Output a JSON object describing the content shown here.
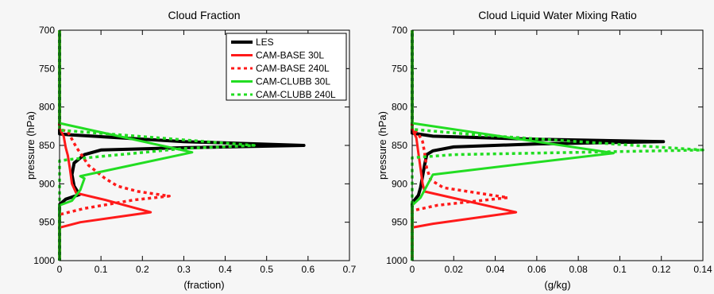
{
  "colors": {
    "LES": "#000000",
    "CAM-BASE 30L": "#ff1a1a",
    "CAM-BASE 240L": "#ff1a1a",
    "CAM-CLUBB 30L": "#22dd22",
    "CAM-CLUBB 240L": "#22dd22"
  },
  "chart_data": [
    {
      "type": "line",
      "title": "Cloud Fraction",
      "xlabel": "(fraction)",
      "ylabel": "pressure (hPa)",
      "xlim": [
        0,
        0.7
      ],
      "ylim": [
        1000,
        700
      ],
      "y_inverted": true,
      "grid": false,
      "legend_position": "top-right",
      "xticks": [
        0,
        0.1,
        0.2,
        0.3,
        0.4,
        0.5,
        0.6,
        0.7
      ],
      "xtick_labels": [
        "0",
        "0.1",
        "0.2",
        "0.3",
        "0.4",
        "0.5",
        "0.6",
        "0.7"
      ],
      "yticks": [
        700,
        750,
        800,
        850,
        900,
        950,
        1000
      ],
      "ytick_labels": [
        "700",
        "750",
        "800",
        "850",
        "900",
        "950",
        "1000"
      ],
      "series": [
        {
          "name": "LES",
          "style": "solid",
          "points": [
            [
              0,
              700
            ],
            [
              0,
              835
            ],
            [
              0.02,
              836
            ],
            [
              0.3,
              845
            ],
            [
              0.59,
              850
            ],
            [
              0.3,
              853
            ],
            [
              0.1,
              856
            ],
            [
              0.06,
              862
            ],
            [
              0.035,
              873
            ],
            [
              0.03,
              888
            ],
            [
              0.035,
              903
            ],
            [
              0.048,
              914
            ],
            [
              0.015,
              920
            ],
            [
              0,
              927
            ],
            [
              0,
              1000
            ]
          ]
        },
        {
          "name": "CAM-BASE 30L",
          "style": "solid",
          "points": [
            [
              0,
              700
            ],
            [
              0,
              828
            ],
            [
              0.01,
              838
            ],
            [
              0.015,
              853
            ],
            [
              0.02,
              863
            ],
            [
              0.025,
              880
            ],
            [
              0.03,
              900
            ],
            [
              0.04,
              912
            ],
            [
              0.11,
              921
            ],
            [
              0.22,
              937
            ],
            [
              0.05,
              950
            ],
            [
              0,
              957
            ],
            [
              0,
              1000
            ]
          ]
        },
        {
          "name": "CAM-BASE 240L",
          "style": "dotted",
          "points": [
            [
              0,
              700
            ],
            [
              0,
              829
            ],
            [
              0.02,
              832
            ],
            [
              0.03,
              842
            ],
            [
              0.04,
              852
            ],
            [
              0.05,
              860
            ],
            [
              0.07,
              876
            ],
            [
              0.11,
              893
            ],
            [
              0.14,
              903
            ],
            [
              0.19,
              910
            ],
            [
              0.265,
              916
            ],
            [
              0.18,
              921
            ],
            [
              0.06,
              932
            ],
            [
              0,
              940
            ],
            [
              0,
              1000
            ]
          ]
        },
        {
          "name": "CAM-CLUBB 30L",
          "style": "solid",
          "points": [
            [
              0,
              700
            ],
            [
              0,
              821
            ],
            [
              0.32,
              859
            ],
            [
              0.05,
              890
            ],
            [
              0.06,
              893
            ],
            [
              0.05,
              908
            ],
            [
              0.03,
              922
            ],
            [
              0,
              928
            ],
            [
              0,
              1000
            ]
          ]
        },
        {
          "name": "CAM-CLUBB 240L",
          "style": "dotted",
          "points": [
            [
              0,
              700
            ],
            [
              0,
              830
            ],
            [
              0.47,
              850
            ],
            [
              0.3,
              854
            ],
            [
              0.03,
              868
            ],
            [
              0,
              870
            ],
            [
              0,
              1000
            ]
          ]
        }
      ]
    },
    {
      "type": "line",
      "title": "Cloud Liquid Water Mixing Ratio",
      "xlabel": "(g/kg)",
      "ylabel": "pressure (hPa)",
      "xlim": [
        0,
        0.14
      ],
      "ylim": [
        1000,
        700
      ],
      "y_inverted": true,
      "grid": false,
      "xticks": [
        0,
        0.02,
        0.04,
        0.06,
        0.08,
        0.1,
        0.12,
        0.14
      ],
      "xtick_labels": [
        "0",
        "0.02",
        "0.04",
        "0.06",
        "0.08",
        "0.1",
        "0.12",
        "0.14"
      ],
      "yticks": [
        700,
        750,
        800,
        850,
        900,
        950,
        1000
      ],
      "ytick_labels": [
        "700",
        "750",
        "800",
        "850",
        "900",
        "950",
        "1000"
      ],
      "series": [
        {
          "name": "LES",
          "style": "solid",
          "points": [
            [
              0,
              700
            ],
            [
              0,
              834
            ],
            [
              0.01,
              838
            ],
            [
              0.06,
              842
            ],
            [
              0.121,
              845
            ],
            [
              0.06,
              848
            ],
            [
              0.02,
              852
            ],
            [
              0.01,
              857
            ],
            [
              0.007,
              862
            ],
            [
              0.006,
              875
            ],
            [
              0.005,
              890
            ],
            [
              0.004,
              905
            ],
            [
              0.003,
              915
            ],
            [
              0,
              925
            ],
            [
              0,
              1000
            ]
          ]
        },
        {
          "name": "CAM-BASE 30L",
          "style": "solid",
          "points": [
            [
              0,
              700
            ],
            [
              0,
              829
            ],
            [
              0.002,
              840
            ],
            [
              0.003,
              860
            ],
            [
              0.004,
              880
            ],
            [
              0.005,
              900
            ],
            [
              0.006,
              910
            ],
            [
              0.05,
              937
            ],
            [
              0.01,
              952
            ],
            [
              0,
              957
            ],
            [
              0,
              1000
            ]
          ]
        },
        {
          "name": "CAM-BASE 240L",
          "style": "dotted",
          "points": [
            [
              0,
              700
            ],
            [
              0,
              829
            ],
            [
              0.003,
              835
            ],
            [
              0.005,
              845
            ],
            [
              0.006,
              860
            ],
            [
              0.007,
              880
            ],
            [
              0.009,
              895
            ],
            [
              0.015,
              905
            ],
            [
              0.046,
              918
            ],
            [
              0.012,
              928
            ],
            [
              0,
              935
            ],
            [
              0,
              1000
            ]
          ]
        },
        {
          "name": "CAM-CLUBB 30L",
          "style": "solid",
          "points": [
            [
              0,
              700
            ],
            [
              0,
              821
            ],
            [
              0.097,
              860
            ],
            [
              0.01,
              888
            ],
            [
              0.007,
              903
            ],
            [
              0.004,
              918
            ],
            [
              0,
              928
            ],
            [
              0,
              1000
            ]
          ]
        },
        {
          "name": "CAM-CLUBB 240L",
          "style": "dotted",
          "points": [
            [
              0,
              700
            ],
            [
              0,
              829
            ],
            [
              0.03,
              836
            ],
            [
              0.14,
              856
            ],
            [
              0.02,
              862
            ],
            [
              0,
              866
            ],
            [
              0,
              1000
            ]
          ]
        }
      ]
    }
  ]
}
